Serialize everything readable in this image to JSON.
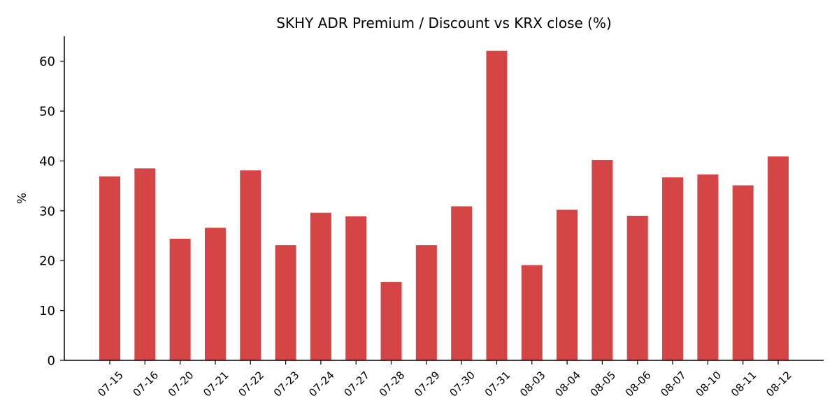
{
  "chart_data": {
    "type": "bar",
    "title": "SKHY ADR Premium / Discount vs KRX close (%)",
    "xlabel": "",
    "ylabel": "%",
    "categories": [
      "07-15",
      "07-16",
      "07-20",
      "07-21",
      "07-22",
      "07-23",
      "07-24",
      "07-27",
      "07-28",
      "07-29",
      "07-30",
      "07-31",
      "08-03",
      "08-04",
      "08-05",
      "08-06",
      "08-07",
      "08-10",
      "08-11",
      "08-12"
    ],
    "values": [
      36.9,
      38.5,
      24.4,
      26.6,
      38.1,
      23.1,
      29.6,
      28.9,
      15.7,
      23.1,
      30.9,
      62.1,
      19.1,
      30.2,
      40.2,
      29.0,
      36.7,
      37.3,
      35.1,
      40.9
    ],
    "ylim": [
      0,
      65
    ],
    "yticks": [
      0,
      10,
      20,
      30,
      40,
      50,
      60
    ],
    "bar_color": "#d64545",
    "grid": false,
    "legend": "none"
  }
}
